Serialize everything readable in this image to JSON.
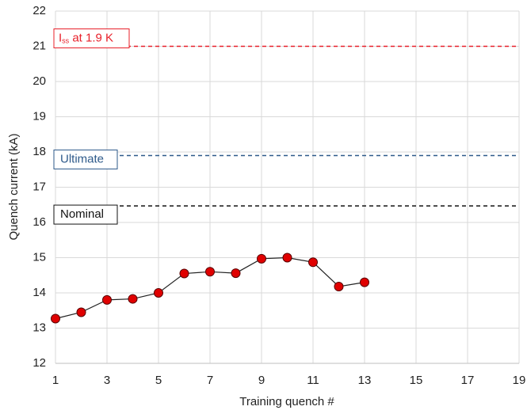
{
  "chart_data": {
    "type": "line",
    "x_label": "Training quench #",
    "y_label": "Quench current (kA)",
    "x": [
      1,
      2,
      3,
      4,
      5,
      6,
      7,
      8,
      9,
      10,
      11,
      12,
      13
    ],
    "series": [
      {
        "color": "#e00000",
        "line_color": "#222222",
        "values": [
          13.27,
          13.45,
          13.8,
          13.83,
          14.0,
          14.55,
          14.6,
          14.56,
          14.97,
          15.0,
          14.87,
          14.18,
          14.3
        ]
      }
    ],
    "reference_lines": [
      {
        "label": {
          "main": "I",
          "sub": "ss",
          "rest": " at 1.9 K"
        },
        "value": 21.0,
        "color": "#e8202a"
      },
      {
        "label": "Ultimate",
        "value": 17.9,
        "color": "#2e5a8a"
      },
      {
        "label": "Nominal",
        "value": 16.47,
        "color": "#111111"
      }
    ],
    "xlim": [
      1,
      19
    ],
    "xticks": [
      1,
      3,
      5,
      7,
      9,
      11,
      13,
      15,
      17,
      19
    ],
    "ylim": [
      12,
      22
    ],
    "yticks": [
      12,
      13,
      14,
      15,
      16,
      17,
      18,
      19,
      20,
      21,
      22
    ],
    "grid": true
  }
}
